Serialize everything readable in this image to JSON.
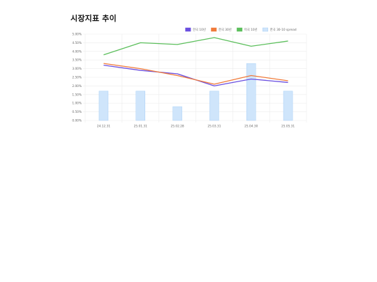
{
  "page": {
    "title": "시장지표 추이"
  },
  "chart_data": {
    "type": "bar",
    "categories": [
      "24.12.31",
      "25.01.31",
      "25.02.28",
      "25.03.31",
      "25.04.30",
      "25.05.31"
    ],
    "yticks": [
      "0.00%",
      "0.50%",
      "1.00%",
      "1.50%",
      "2.00%",
      "2.50%",
      "3.00%",
      "3.50%",
      "4.00%",
      "4.50%",
      "5.00%"
    ],
    "ylim": [
      0,
      5
    ],
    "grid": true,
    "legend_position": "top-right",
    "series": [
      {
        "name": "한국 10년",
        "type": "line",
        "color": "#6a4fe0",
        "values": [
          3.2,
          2.9,
          2.7,
          2.0,
          2.4,
          2.2
        ]
      },
      {
        "name": "한국 30년",
        "type": "line",
        "color": "#f07a3a",
        "values": [
          3.3,
          3.0,
          2.6,
          2.1,
          2.6,
          2.3
        ]
      },
      {
        "name": "미국 10년",
        "type": "line",
        "color": "#5cbf5c",
        "values": [
          3.8,
          4.5,
          4.4,
          4.8,
          4.3,
          4.6
        ]
      },
      {
        "name": "한국 30-10 spread",
        "type": "bar",
        "color": "#cfe5fb",
        "border": "#a9d0f7",
        "values": [
          1.7,
          1.7,
          0.8,
          1.7,
          3.3,
          1.7
        ]
      }
    ]
  }
}
